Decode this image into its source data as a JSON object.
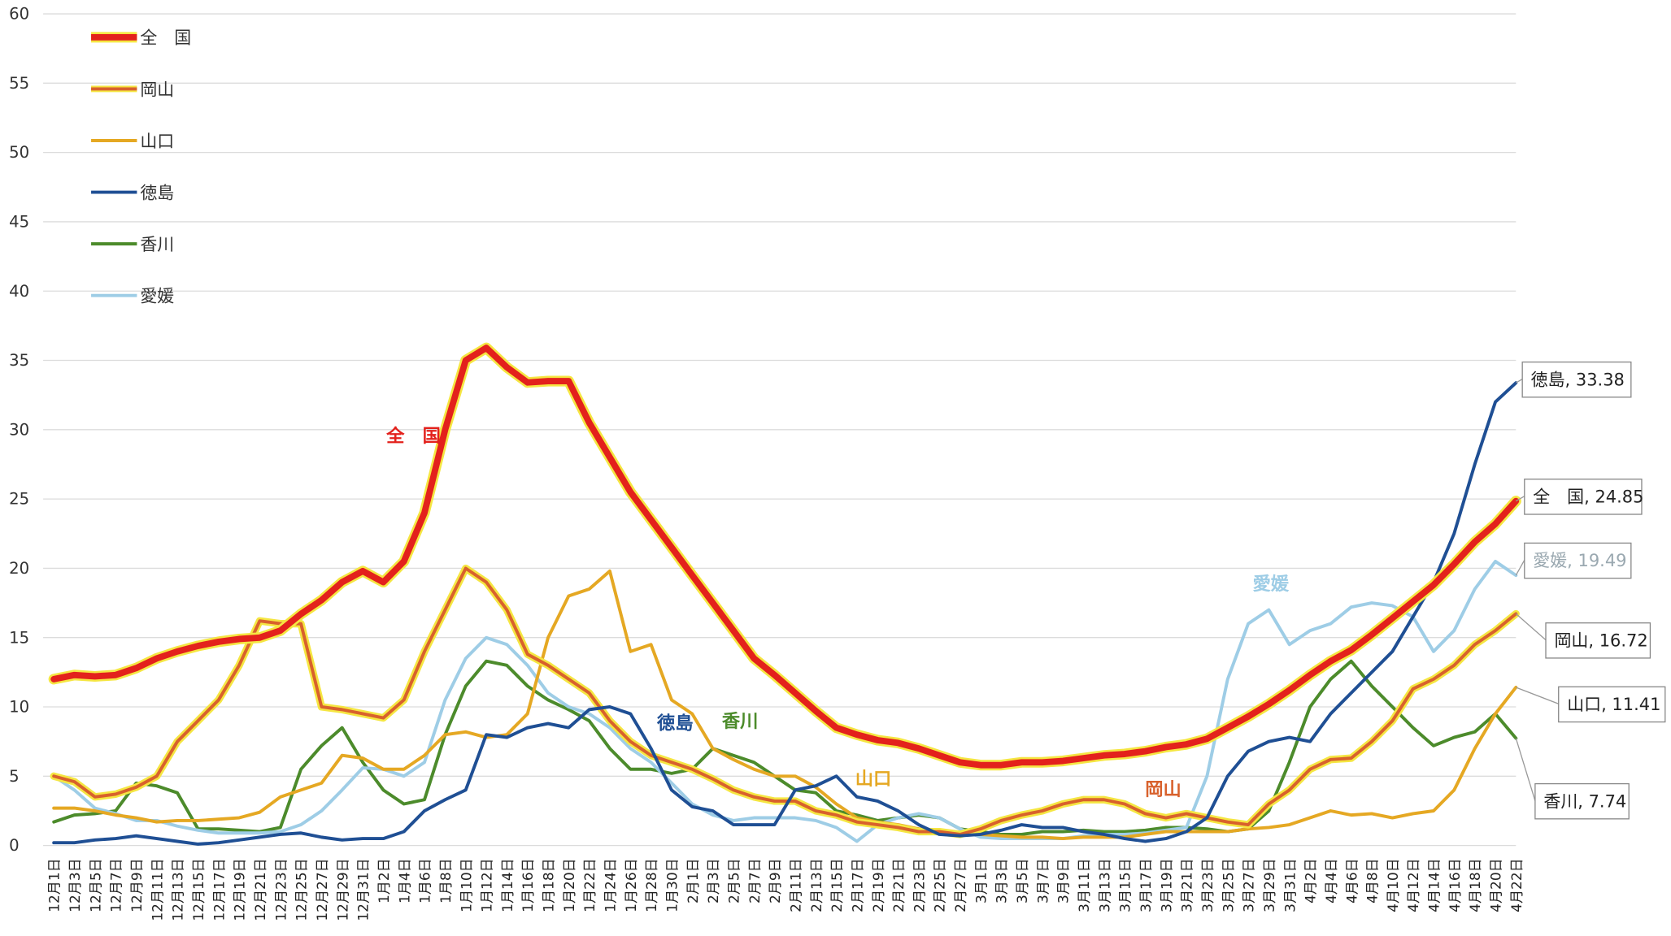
{
  "chart_data": {
    "type": "line",
    "categories": [
      "12月1日",
      "12月3日",
      "12月5日",
      "12月7日",
      "12月9日",
      "12月11日",
      "12月13日",
      "12月15日",
      "12月17日",
      "12月19日",
      "12月21日",
      "12月23日",
      "12月25日",
      "12月27日",
      "12月29日",
      "12月31日",
      "1月2日",
      "1月4日",
      "1月6日",
      "1月8日",
      "1月10日",
      "1月12日",
      "1月14日",
      "1月16日",
      "1月18日",
      "1月20日",
      "1月22日",
      "1月24日",
      "1月26日",
      "1月28日",
      "1月30日",
      "2月1日",
      "2月3日",
      "2月5日",
      "2月7日",
      "2月9日",
      "2月11日",
      "2月13日",
      "2月15日",
      "2月17日",
      "2月19日",
      "2月21日",
      "2月23日",
      "2月25日",
      "2月27日",
      "3月1日",
      "3月3日",
      "3月5日",
      "3月7日",
      "3月9日",
      "3月11日",
      "3月13日",
      "3月15日",
      "3月17日",
      "3月19日",
      "3月21日",
      "3月23日",
      "3月25日",
      "3月27日",
      "3月29日",
      "3月31日",
      "4月2日",
      "4月4日",
      "4月6日",
      "4月8日",
      "4月10日",
      "4月12日",
      "4月14日",
      "4月16日",
      "4月18日",
      "4月20日",
      "4月22日"
    ],
    "series": [
      {
        "name": "全　国",
        "color": "#e3211c",
        "halo": "#f5e642",
        "values": [
          12,
          12.3,
          12.2,
          12.3,
          12.8,
          13.5,
          14,
          14.4,
          14.7,
          14.9,
          15,
          15.5,
          16.7,
          17.7,
          19,
          19.8,
          19,
          20.5,
          24,
          30,
          35,
          35.9,
          34.5,
          33.4,
          33.5,
          33.5,
          30.5,
          28,
          25.5,
          23.5,
          21.5,
          19.5,
          17.5,
          15.5,
          13.5,
          12.3,
          11,
          9.7,
          8.5,
          8,
          7.6,
          7.4,
          7,
          6.5,
          6,
          5.8,
          5.8,
          6,
          6,
          6.1,
          6.3,
          6.5,
          6.6,
          6.8,
          7.1,
          7.3,
          7.7,
          8.5,
          9.3,
          10.2,
          11.2,
          12.3,
          13.3,
          14.1,
          15.2,
          16.4,
          17.6,
          18.8,
          20.3,
          21.9,
          23.2,
          24.85
        ],
        "value_labels": {
          "71": "全　国, 24.85"
        }
      },
      {
        "name": "岡山",
        "color": "#d8612c",
        "halo": "#f5e642",
        "values": [
          5,
          4.6,
          3.5,
          3.7,
          4.2,
          5,
          7.5,
          9,
          10.5,
          13,
          16.2,
          16,
          16,
          10,
          9.8,
          9.5,
          9.2,
          10.5,
          14,
          17,
          20,
          19,
          17,
          13.8,
          13,
          12,
          11,
          9,
          7.5,
          6.5,
          6,
          5.5,
          4.8,
          4,
          3.5,
          3.2,
          3.2,
          2.5,
          2.2,
          1.7,
          1.5,
          1.3,
          1,
          1,
          0.8,
          1.2,
          1.8,
          2.2,
          2.5,
          3,
          3.3,
          3.3,
          3,
          2.3,
          2,
          2.3,
          2,
          1.7,
          1.5,
          3,
          4,
          5.5,
          6.2,
          6.3,
          7.5,
          9,
          11.3,
          12,
          13,
          14.5,
          15.5,
          16.72
        ],
        "value_labels": {
          "71": "岡山, 16.72"
        }
      },
      {
        "name": "山口",
        "color": "#e5a823",
        "values": [
          2.7,
          2.7,
          2.5,
          2.2,
          2,
          1.7,
          1.8,
          1.8,
          1.9,
          2,
          2.4,
          3.5,
          4,
          4.5,
          6.5,
          6.3,
          5.5,
          5.5,
          6.5,
          8,
          8.2,
          7.8,
          8,
          9.5,
          15,
          18,
          18.5,
          19.8,
          14,
          14.5,
          10.5,
          9.5,
          7,
          6.2,
          5.5,
          5,
          5,
          4.2,
          3,
          2,
          1.7,
          1.5,
          1.2,
          1,
          0.9,
          0.8,
          0.7,
          0.6,
          0.6,
          0.5,
          0.6,
          0.6,
          0.6,
          0.8,
          1,
          1,
          1,
          1,
          1.2,
          1.3,
          1.5,
          2,
          2.5,
          2.2,
          2.3,
          2,
          2.3,
          2.5,
          4,
          7,
          9.5,
          11.41
        ],
        "value_labels": {
          "71": "山口, 11.41"
        }
      },
      {
        "name": "徳島",
        "color": "#1f4f94",
        "values": [
          0.2,
          0.2,
          0.4,
          0.5,
          0.7,
          0.5,
          0.3,
          0.1,
          0.2,
          0.4,
          0.6,
          0.8,
          0.9,
          0.6,
          0.4,
          0.5,
          0.5,
          1,
          2.5,
          3.3,
          4,
          8,
          7.8,
          8.5,
          8.8,
          8.5,
          9.8,
          10,
          9.5,
          7,
          4,
          2.8,
          2.5,
          1.5,
          1.5,
          1.5,
          4,
          4.3,
          5,
          3.5,
          3.2,
          2.5,
          1.5,
          0.8,
          0.7,
          0.8,
          1.1,
          1.5,
          1.3,
          1.3,
          1,
          0.8,
          0.5,
          0.3,
          0.5,
          1,
          2,
          5,
          6.8,
          7.5,
          7.8,
          7.5,
          9.5,
          11,
          12.5,
          14,
          16.5,
          19,
          22.5,
          27.5,
          32,
          33.38
        ],
        "value_labels": {
          "71": "徳島, 33.38"
        }
      },
      {
        "name": "香川",
        "color": "#4c8b2b",
        "values": [
          1.7,
          2.2,
          2.3,
          2.5,
          4.5,
          4.3,
          3.8,
          1.2,
          1.2,
          1.1,
          1,
          1.3,
          5.5,
          7.2,
          8.5,
          6,
          4,
          3,
          3.3,
          8,
          11.5,
          13.3,
          13,
          11.5,
          10.5,
          9.8,
          9,
          7,
          5.5,
          5.5,
          5.2,
          5.5,
          7,
          6.5,
          6,
          5,
          4,
          3.8,
          2.5,
          2.2,
          1.8,
          2,
          2.2,
          2,
          1.2,
          1,
          0.8,
          0.8,
          1,
          1,
          1.1,
          1,
          1,
          1.1,
          1.3,
          1.3,
          1.2,
          1,
          1.2,
          2.5,
          6,
          10,
          12,
          13.3,
          11.5,
          10,
          8.5,
          7.2,
          7.8,
          8.2,
          9.5,
          7.74
        ],
        "value_labels": {
          "71": "香川, 7.74"
        }
      },
      {
        "name": "愛媛",
        "color": "#9ecde6",
        "values": [
          5,
          4,
          2.7,
          2.3,
          1.8,
          1.8,
          1.4,
          1.1,
          0.9,
          0.9,
          0.9,
          1,
          1.5,
          2.5,
          4,
          5.6,
          5.5,
          5,
          6,
          10.5,
          13.5,
          15,
          14.5,
          13,
          11,
          10,
          9.5,
          8.5,
          7,
          6,
          4.5,
          3,
          2.2,
          1.8,
          2,
          2,
          2,
          1.8,
          1.3,
          0.3,
          1.5,
          2,
          2.3,
          2,
          1.2,
          0.6,
          0.5,
          0.5,
          0.5,
          0.5,
          0.7,
          0.8,
          0.8,
          0.9,
          1.1,
          1.3,
          5,
          12,
          16,
          17,
          14.5,
          15.5,
          16,
          17.2,
          17.5,
          17.3,
          16.5,
          14,
          15.5,
          18.5,
          20.5,
          19.49
        ],
        "value_labels": {
          "71": "愛媛, 19.49"
        }
      }
    ],
    "annotations": [
      {
        "text": "全　国",
        "color": "#e3211c"
      },
      {
        "text": "徳島",
        "color": "#1f4f94"
      },
      {
        "text": "香川",
        "color": "#4c8b2b"
      },
      {
        "text": "山口",
        "color": "#e5a823"
      },
      {
        "text": "岡山",
        "color": "#d8612c"
      },
      {
        "text": "愛媛",
        "color": "#9ecde6"
      }
    ],
    "ylim": [
      0,
      60
    ],
    "yticks": [
      0,
      5,
      10,
      15,
      20,
      25,
      30,
      35,
      40,
      45,
      50,
      55,
      60
    ],
    "grid": true,
    "legend": "upper left"
  }
}
